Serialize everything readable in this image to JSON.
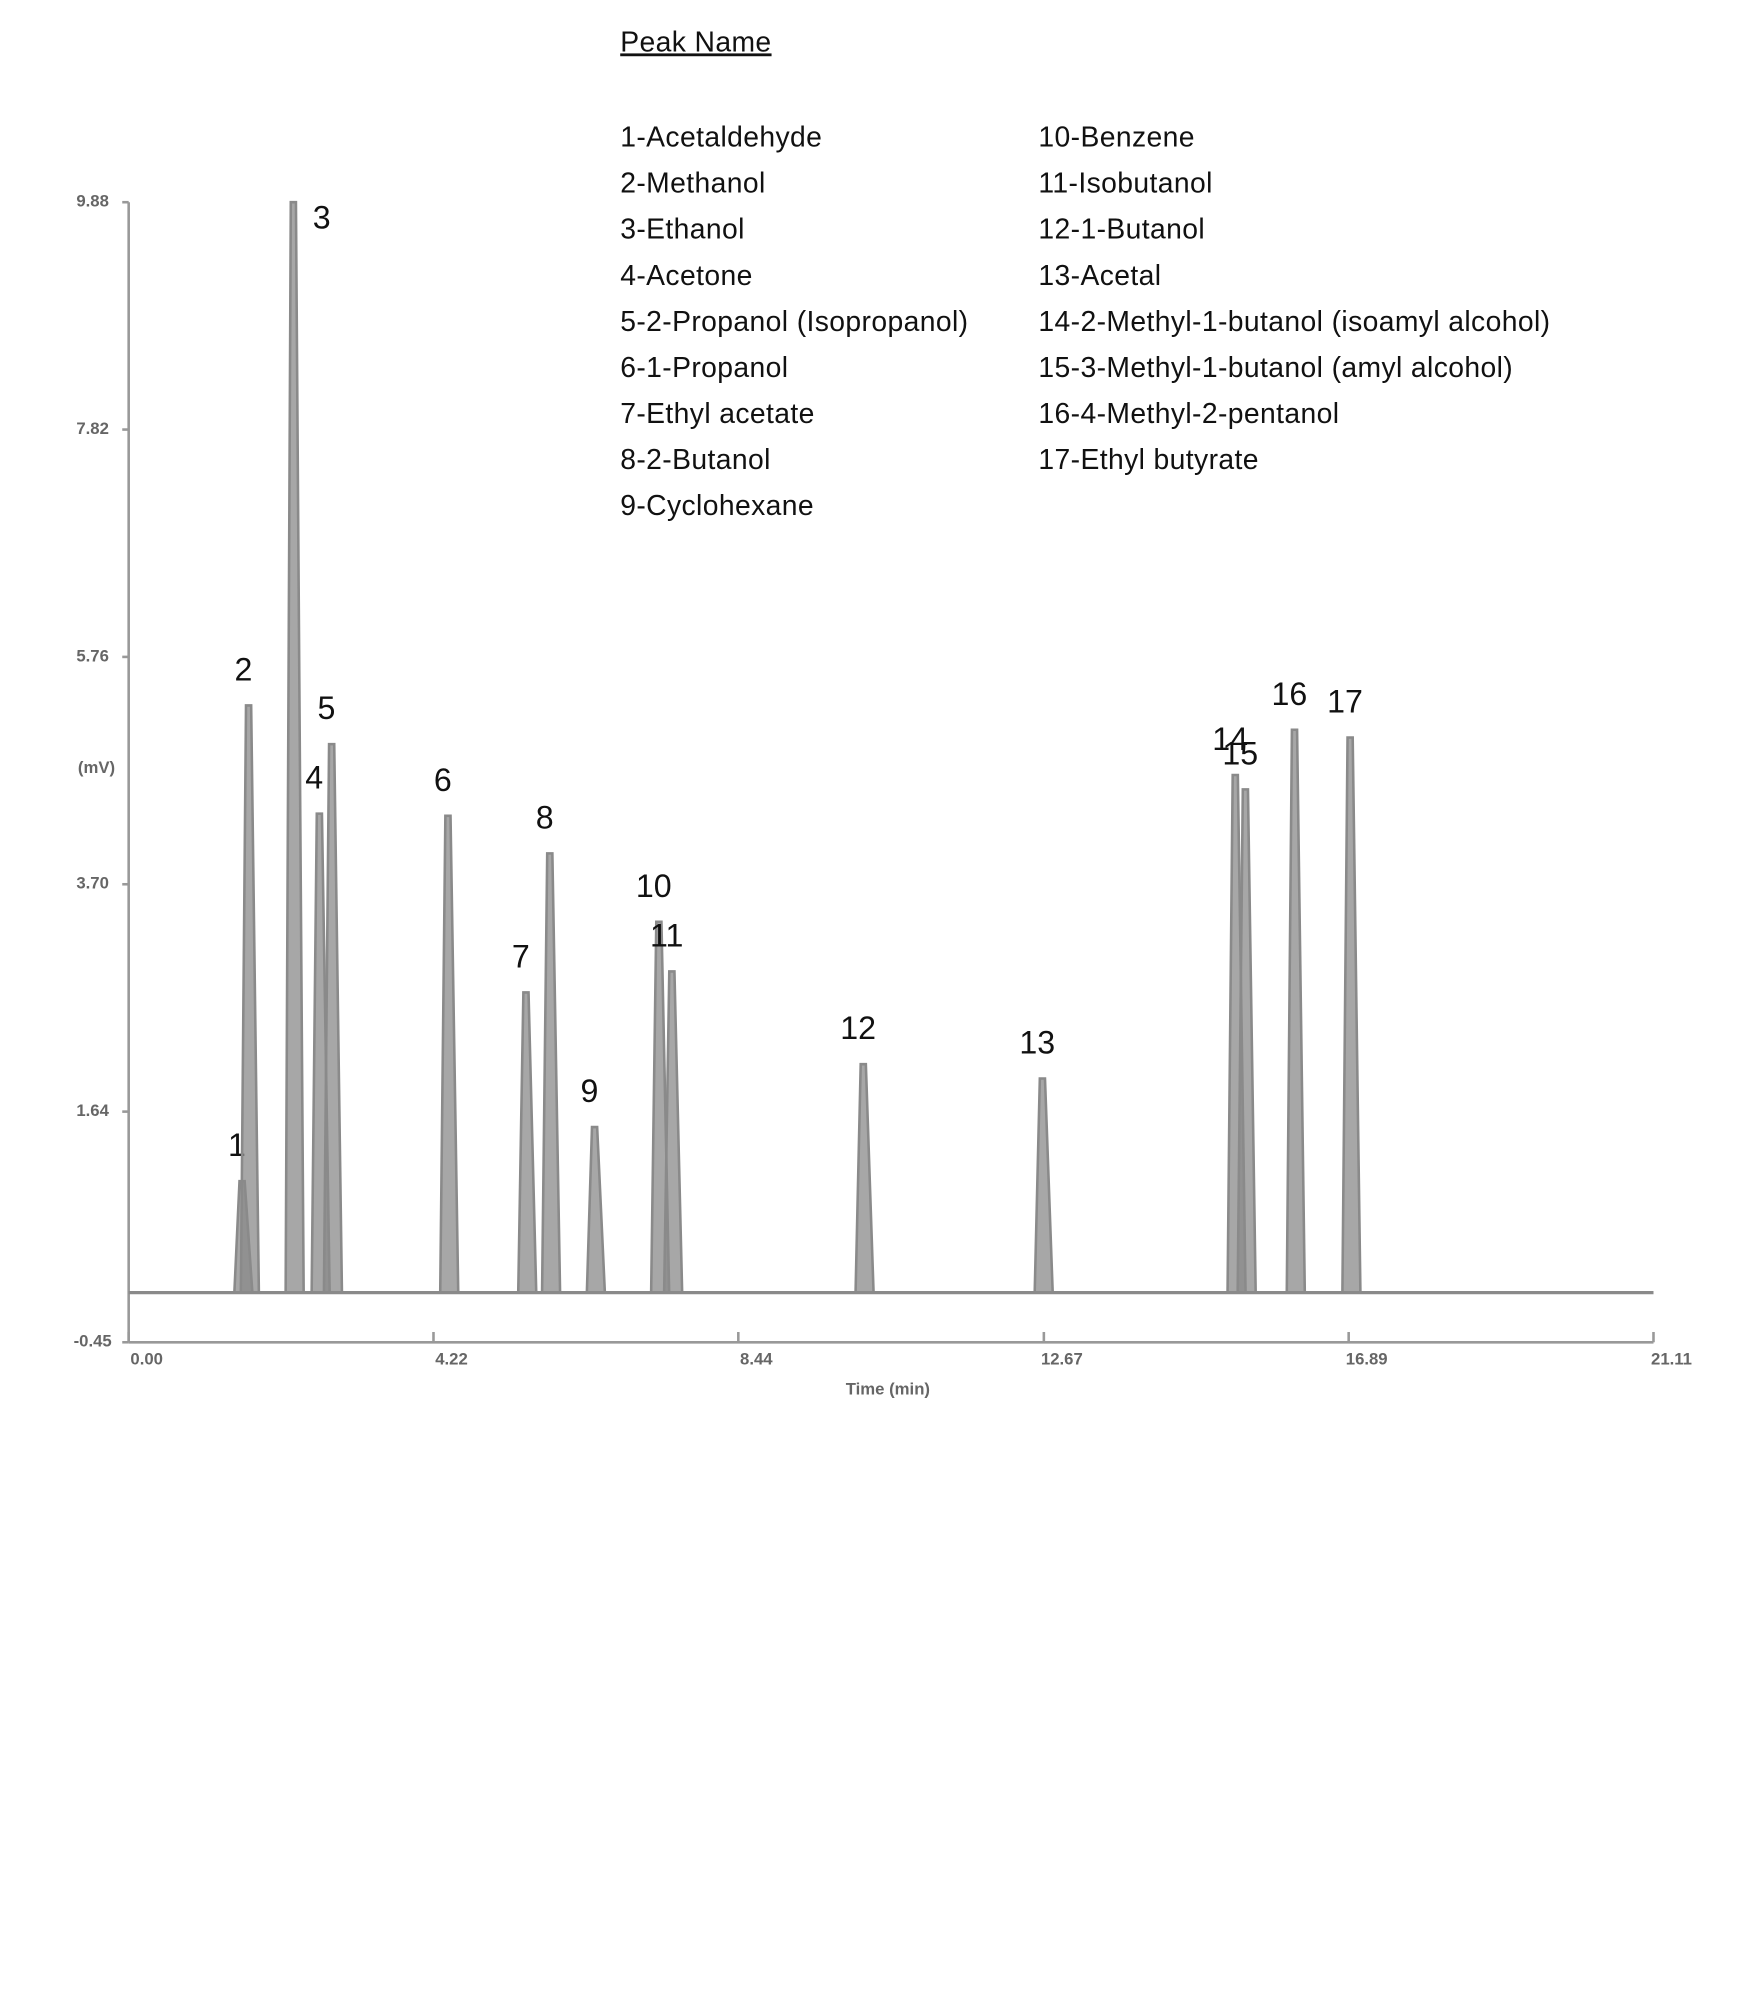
{
  "chart_data": {
    "type": "chromatogram",
    "legend_title": "Peak Name",
    "ylabel": "(mV)",
    "xlabel": "Time (min)",
    "xlim": [
      0,
      21.11
    ],
    "xticks": [
      {
        "value": 0,
        "label": "0.00"
      },
      4.22,
      8.44,
      12.67,
      16.89,
      21.11
    ],
    "ylim": [
      -0.45,
      9.88
    ],
    "yticks": [
      9.88,
      7.82,
      5.76,
      {
        "value": 3.7,
        "label": "3.70"
      },
      1.64,
      -0.45
    ],
    "color": "#8a8a8a",
    "peaks": {
      "labels": [
        "1",
        "2",
        "3",
        "4",
        "5",
        "6",
        "7",
        "8",
        "9",
        "10",
        "11",
        "12",
        "13",
        "14",
        "15",
        "16",
        "17"
      ],
      "names": [
        "1-Acetaldehyde",
        "2-Methanol",
        "3-Ethanol",
        "4-Acetone",
        "5-2-Propanol (Isopropanol)",
        "6-1-Propanol",
        "7-Ethyl acetate",
        "8-2-Butanol",
        "9-Cyclohexane",
        "10-Benzene",
        "11-Isobutanol",
        "12-1-Butanol",
        "13-Acetal",
        "14-2-Methyl-1-butanol (isoamyl alcohol)",
        "15-3-Methyl-1-butanol (amyl alcohol)",
        "16-4-Methyl-2-pentanol",
        "17-Ethyl butyrate"
      ],
      "x": [
        1.57,
        1.66,
        2.28,
        2.64,
        2.81,
        4.42,
        5.5,
        5.83,
        6.45,
        7.34,
        7.52,
        10.17,
        12.65,
        15.32,
        15.46,
        16.14,
        16.91
      ],
      "values": [
        1.01,
        5.32,
        9.88,
        4.34,
        4.97,
        4.32,
        2.72,
        3.98,
        1.5,
        3.36,
        2.91,
        2.07,
        1.94,
        4.69,
        4.56,
        5.1,
        5.03
      ]
    }
  }
}
